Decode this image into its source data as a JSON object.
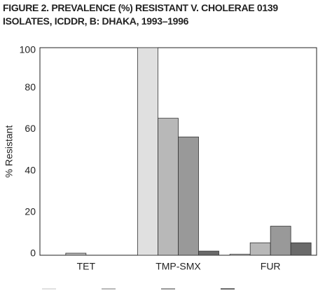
{
  "chart_data": {
    "type": "bar",
    "title": "FIGURE 2. PREVALENCE (%) RESISTANT V. CHOLERAE 0139 ISOLATES, ICDDR, B: DHAKA, 1993–1996",
    "y_label": "% Resistant",
    "categories": [
      "TET",
      "TMP-SMX",
      "FUR"
    ],
    "series": [
      {
        "color": "#e0e0e0",
        "values": [
          0,
          100,
          0.5
        ]
      },
      {
        "color": "#b8b8b8",
        "values": [
          1,
          66,
          6
        ]
      },
      {
        "color": "#999999",
        "values": [
          0,
          57,
          14
        ]
      },
      {
        "color": "#6a6a6a",
        "values": [
          0,
          2,
          6
        ]
      }
    ],
    "ylim": [
      0,
      100
    ],
    "yticks": [
      0,
      20,
      40,
      60,
      80,
      100
    ],
    "grid": false
  }
}
